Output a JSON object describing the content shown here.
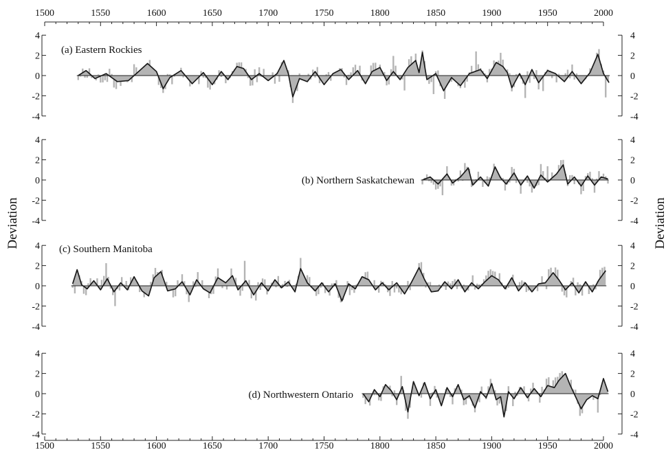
{
  "chart_data": {
    "type": "line",
    "xlim": [
      1500,
      2000
    ],
    "x_ticks": [
      1500,
      1550,
      1600,
      1650,
      1700,
      1750,
      1800,
      1850,
      1900,
      1950,
      2000
    ],
    "ylim": [
      -4,
      4
    ],
    "y_ticks": [
      4,
      2,
      0,
      -2,
      -4
    ],
    "ylabel": "Deviation",
    "panels": [
      {
        "label": "(a) Eastern Rockies",
        "start_year": 1530,
        "end_year": 2005,
        "smoothed": [
          [
            1530,
            0
          ],
          [
            1537,
            0.5
          ],
          [
            1545,
            -0.3
          ],
          [
            1555,
            0.2
          ],
          [
            1565,
            -0.6
          ],
          [
            1575,
            -0.5
          ],
          [
            1583,
            0.3
          ],
          [
            1592,
            1.2
          ],
          [
            1600,
            0.4
          ],
          [
            1606,
            -1.3
          ],
          [
            1612,
            -0.2
          ],
          [
            1622,
            0.5
          ],
          [
            1632,
            -0.8
          ],
          [
            1642,
            0.3
          ],
          [
            1650,
            -0.9
          ],
          [
            1658,
            0.4
          ],
          [
            1664,
            -0.4
          ],
          [
            1672,
            0.9
          ],
          [
            1678,
            0.7
          ],
          [
            1685,
            -0.4
          ],
          [
            1692,
            0.2
          ],
          [
            1700,
            -0.5
          ],
          [
            1708,
            0.2
          ],
          [
            1714,
            1.5
          ],
          [
            1718,
            0.2
          ],
          [
            1722,
            -2.1
          ],
          [
            1728,
            -0.3
          ],
          [
            1735,
            -0.6
          ],
          [
            1742,
            0.4
          ],
          [
            1750,
            -0.9
          ],
          [
            1758,
            0.2
          ],
          [
            1765,
            0.6
          ],
          [
            1772,
            -0.4
          ],
          [
            1780,
            0.5
          ],
          [
            1787,
            -0.8
          ],
          [
            1793,
            0.4
          ],
          [
            1800,
            0.8
          ],
          [
            1806,
            -0.5
          ],
          [
            1812,
            0.4
          ],
          [
            1818,
            -0.4
          ],
          [
            1825,
            0.8
          ],
          [
            1832,
            1.5
          ],
          [
            1835,
            0.3
          ],
          [
            1838,
            2.3
          ],
          [
            1842,
            -0.4
          ],
          [
            1850,
            0.2
          ],
          [
            1857,
            -1.5
          ],
          [
            1864,
            -0.2
          ],
          [
            1872,
            -1
          ],
          [
            1880,
            0.2
          ],
          [
            1890,
            0.6
          ],
          [
            1896,
            -0.3
          ],
          [
            1904,
            1.3
          ],
          [
            1910,
            0.9
          ],
          [
            1914,
            0.3
          ],
          [
            1918,
            -1.2
          ],
          [
            1925,
            0.2
          ],
          [
            1930,
            -0.9
          ],
          [
            1936,
            0.6
          ],
          [
            1942,
            -0.7
          ],
          [
            1950,
            0.5
          ],
          [
            1957,
            0.2
          ],
          [
            1965,
            -0.6
          ],
          [
            1972,
            0.4
          ],
          [
            1980,
            -0.8
          ],
          [
            1988,
            0.3
          ],
          [
            1995,
            2.1
          ],
          [
            2000,
            0.2
          ],
          [
            2005,
            -0.7
          ]
        ],
        "annual_seed": 11
      },
      {
        "label": "(b) Northern Saskatchewan",
        "start_year": 1838,
        "end_year": 2004,
        "smoothed": [
          [
            1838,
            0
          ],
          [
            1845,
            0.3
          ],
          [
            1852,
            -0.4
          ],
          [
            1860,
            0.6
          ],
          [
            1865,
            -0.3
          ],
          [
            1872,
            0.3
          ],
          [
            1879,
            1.2
          ],
          [
            1883,
            -0.5
          ],
          [
            1890,
            0.3
          ],
          [
            1897,
            -0.6
          ],
          [
            1903,
            1.3
          ],
          [
            1908,
            0.2
          ],
          [
            1913,
            -0.4
          ],
          [
            1920,
            0.7
          ],
          [
            1926,
            -0.5
          ],
          [
            1932,
            0.4
          ],
          [
            1938,
            -0.8
          ],
          [
            1944,
            0.5
          ],
          [
            1950,
            -0.2
          ],
          [
            1958,
            0.6
          ],
          [
            1964,
            1.5
          ],
          [
            1968,
            -0.4
          ],
          [
            1974,
            0.3
          ],
          [
            1980,
            -0.6
          ],
          [
            1986,
            0.4
          ],
          [
            1992,
            -0.5
          ],
          [
            1998,
            0.3
          ],
          [
            2004,
            0.1
          ]
        ],
        "annual_seed": 23
      },
      {
        "label": "(c) Southern Manitoba",
        "start_year": 1525,
        "end_year": 2002,
        "smoothed": [
          [
            1525,
            0.2
          ],
          [
            1529,
            1.6
          ],
          [
            1533,
            0.1
          ],
          [
            1538,
            -0.3
          ],
          [
            1544,
            0.5
          ],
          [
            1550,
            -0.4
          ],
          [
            1556,
            0.7
          ],
          [
            1562,
            -0.6
          ],
          [
            1568,
            0.3
          ],
          [
            1574,
            -0.4
          ],
          [
            1580,
            0.9
          ],
          [
            1587,
            -0.5
          ],
          [
            1593,
            -1
          ],
          [
            1598,
            0.8
          ],
          [
            1604,
            1.4
          ],
          [
            1610,
            -0.5
          ],
          [
            1617,
            -0.3
          ],
          [
            1623,
            0.4
          ],
          [
            1630,
            -0.9
          ],
          [
            1636,
            0.6
          ],
          [
            1642,
            -0.3
          ],
          [
            1648,
            -0.7
          ],
          [
            1655,
            0.8
          ],
          [
            1662,
            0.3
          ],
          [
            1668,
            1
          ],
          [
            1673,
            -0.4
          ],
          [
            1680,
            0.5
          ],
          [
            1687,
            -0.9
          ],
          [
            1694,
            0.3
          ],
          [
            1700,
            -0.5
          ],
          [
            1706,
            0.6
          ],
          [
            1712,
            -0.2
          ],
          [
            1718,
            0.4
          ],
          [
            1724,
            -0.6
          ],
          [
            1729,
            1.7
          ],
          [
            1735,
            0.3
          ],
          [
            1742,
            -0.5
          ],
          [
            1748,
            0.3
          ],
          [
            1754,
            -0.6
          ],
          [
            1760,
            0.2
          ],
          [
            1766,
            -1.5
          ],
          [
            1772,
            0.2
          ],
          [
            1778,
            -0.3
          ],
          [
            1784,
            0.9
          ],
          [
            1790,
            0.6
          ],
          [
            1796,
            -0.4
          ],
          [
            1802,
            0.3
          ],
          [
            1808,
            -0.4
          ],
          [
            1815,
            0.3
          ],
          [
            1822,
            -0.8
          ],
          [
            1828,
            0.3
          ],
          [
            1835,
            1.8
          ],
          [
            1840,
            0.6
          ],
          [
            1846,
            -0.6
          ],
          [
            1852,
            -0.5
          ],
          [
            1858,
            0.4
          ],
          [
            1864,
            -0.3
          ],
          [
            1870,
            0.6
          ],
          [
            1876,
            -0.6
          ],
          [
            1882,
            0.3
          ],
          [
            1888,
            -0.3
          ],
          [
            1894,
            0.4
          ],
          [
            1900,
            1
          ],
          [
            1906,
            0.6
          ],
          [
            1912,
            -0.3
          ],
          [
            1918,
            0.8
          ],
          [
            1924,
            -0.5
          ],
          [
            1930,
            0.3
          ],
          [
            1936,
            -0.6
          ],
          [
            1942,
            0.2
          ],
          [
            1948,
            0.3
          ],
          [
            1955,
            1.3
          ],
          [
            1960,
            0.6
          ],
          [
            1966,
            -0.4
          ],
          [
            1972,
            0.3
          ],
          [
            1978,
            -0.7
          ],
          [
            1984,
            0.4
          ],
          [
            1990,
            -0.6
          ],
          [
            1996,
            0.6
          ],
          [
            2002,
            1.5
          ]
        ],
        "annual_seed": 37
      },
      {
        "label": "(d) Northwestern Ontario",
        "start_year": 1785,
        "end_year": 2004,
        "smoothed": [
          [
            1785,
            0
          ],
          [
            1790,
            -0.8
          ],
          [
            1795,
            0.4
          ],
          [
            1800,
            -0.3
          ],
          [
            1805,
            0.9
          ],
          [
            1810,
            0.3
          ],
          [
            1815,
            -0.6
          ],
          [
            1820,
            0.7
          ],
          [
            1825,
            -1.8
          ],
          [
            1830,
            1.2
          ],
          [
            1835,
            -0.2
          ],
          [
            1840,
            1.1
          ],
          [
            1845,
            -0.5
          ],
          [
            1850,
            0.4
          ],
          [
            1855,
            -1.2
          ],
          [
            1860,
            0.6
          ],
          [
            1865,
            -0.3
          ],
          [
            1870,
            0.9
          ],
          [
            1875,
            -0.6
          ],
          [
            1880,
            -0.2
          ],
          [
            1885,
            -1.4
          ],
          [
            1890,
            0.2
          ],
          [
            1895,
            -0.4
          ],
          [
            1900,
            1
          ],
          [
            1904,
            -0.6
          ],
          [
            1908,
            -0.3
          ],
          [
            1911,
            -2.3
          ],
          [
            1915,
            0.2
          ],
          [
            1920,
            -0.5
          ],
          [
            1926,
            0.6
          ],
          [
            1932,
            -0.4
          ],
          [
            1938,
            0.5
          ],
          [
            1944,
            -0.3
          ],
          [
            1950,
            0.8
          ],
          [
            1956,
            0.6
          ],
          [
            1960,
            1.3
          ],
          [
            1966,
            2
          ],
          [
            1970,
            0.9
          ],
          [
            1975,
            -0.3
          ],
          [
            1980,
            -1.5
          ],
          [
            1985,
            -0.6
          ],
          [
            1990,
            -0.2
          ],
          [
            1995,
            -0.5
          ],
          [
            2000,
            1.5
          ],
          [
            2004,
            0.2
          ]
        ],
        "annual_seed": 53
      }
    ]
  }
}
